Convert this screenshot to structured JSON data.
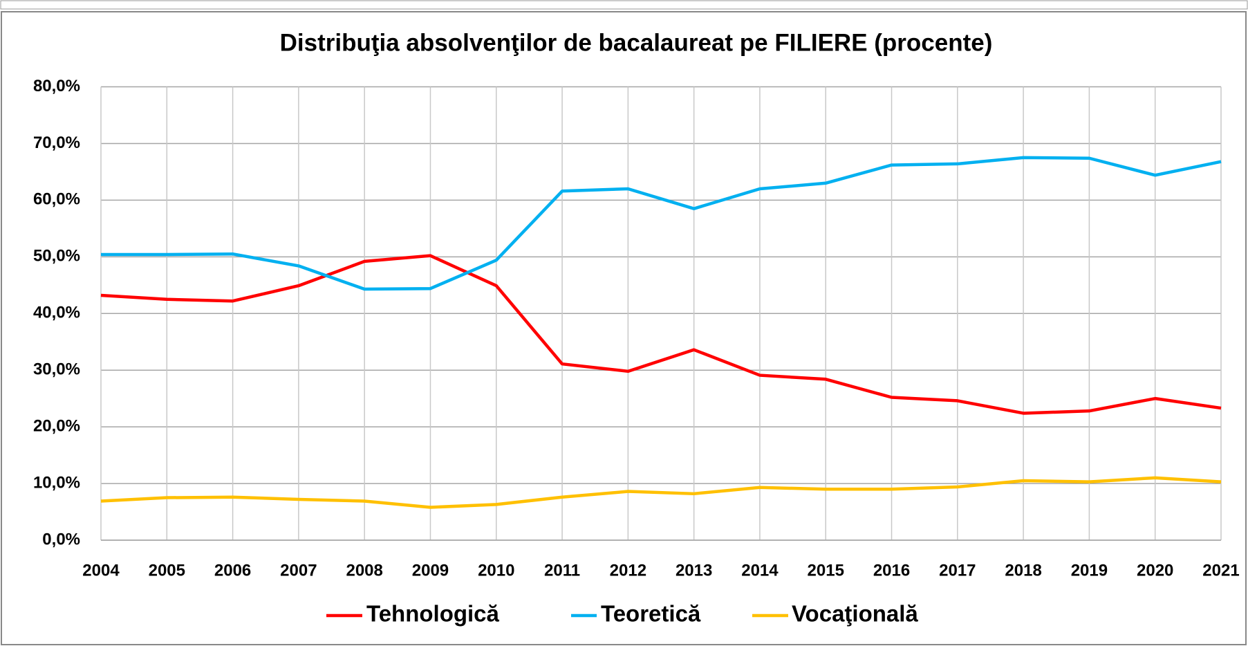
{
  "chart_data": {
    "type": "line",
    "title": "Distribuţia absolvenţilor de bacalaureat pe FILIERE (procente)",
    "categories": [
      "2004",
      "2005",
      "2006",
      "2007",
      "2008",
      "2009",
      "2010",
      "2011",
      "2012",
      "2013",
      "2014",
      "2015",
      "2016",
      "2017",
      "2018",
      "2019",
      "2020",
      "2021"
    ],
    "series": [
      {
        "name": "Tehnologică",
        "color": "#ff0000",
        "values": [
          43.2,
          42.5,
          42.2,
          44.9,
          49.2,
          50.2,
          44.9,
          31.1,
          29.8,
          33.6,
          29.1,
          28.4,
          25.2,
          24.6,
          22.4,
          22.8,
          25.0,
          23.3
        ]
      },
      {
        "name": "Teoretică",
        "color": "#00b0f0",
        "values": [
          50.4,
          50.4,
          50.5,
          48.4,
          44.3,
          44.4,
          49.4,
          61.6,
          62.0,
          58.5,
          62.0,
          63.0,
          66.2,
          66.4,
          67.5,
          67.4,
          64.4,
          66.8
        ]
      },
      {
        "name": "Vocaţională",
        "color": "#ffc000",
        "values": [
          6.9,
          7.5,
          7.6,
          7.2,
          6.9,
          5.8,
          6.3,
          7.6,
          8.6,
          8.2,
          9.3,
          9.0,
          9.0,
          9.4,
          10.5,
          10.3,
          11.0,
          10.3
        ]
      }
    ],
    "ylim": [
      0,
      80
    ],
    "yticks": [
      {
        "value": 0,
        "label": "0,0%"
      },
      {
        "value": 10,
        "label": "10,0%"
      },
      {
        "value": 20,
        "label": "20,0%"
      },
      {
        "value": 30,
        "label": "30,0%"
      },
      {
        "value": 40,
        "label": "40,0%"
      },
      {
        "value": 50,
        "label": "50,0%"
      },
      {
        "value": 60,
        "label": "60,0%"
      },
      {
        "value": 70,
        "label": "70,0%"
      },
      {
        "value": 80,
        "label": "80,0%"
      }
    ],
    "grid": true,
    "legend": "bottom"
  }
}
